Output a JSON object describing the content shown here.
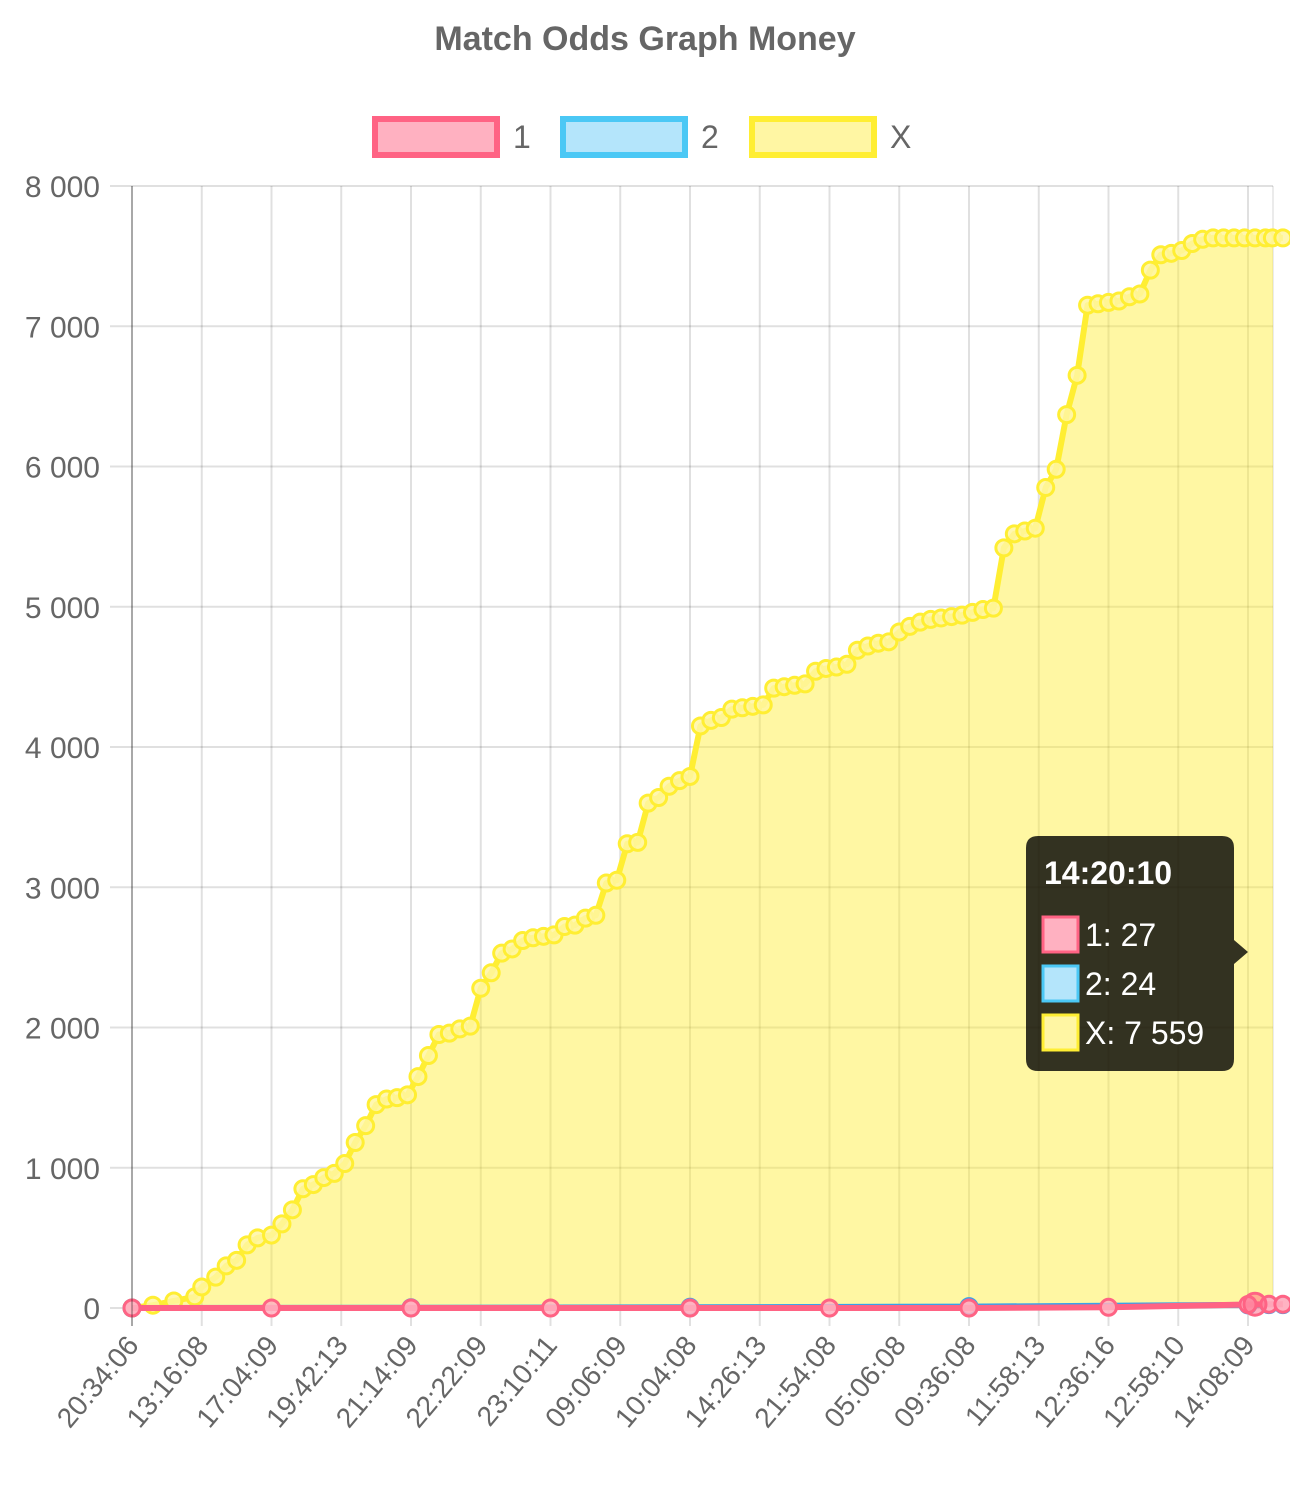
{
  "chart_data": {
    "type": "line",
    "title": "Match Odds Graph Money",
    "xlabel": "",
    "ylabel": "",
    "ylim": [
      0,
      8000
    ],
    "y_ticks": [
      "0",
      "1 000",
      "2 000",
      "3 000",
      "4 000",
      "5 000",
      "6 000",
      "7 000",
      "8 000"
    ],
    "x_tick_labels": [
      "20:34:06",
      "13:16:08",
      "17:04:09",
      "19:42:13",
      "21:14:09",
      "22:22:09",
      "23:10:11",
      "09:06:09",
      "10:04:08",
      "14:26:13",
      "21:54:08",
      "05:06:08",
      "09:36:08",
      "11:58:13",
      "12:36:16",
      "12:58:10",
      "14:08:09"
    ],
    "grid": true,
    "legend_position": "top",
    "series": [
      {
        "name": "1",
        "color": "#ff6384",
        "fill": false,
        "x": [
          0,
          2,
          4,
          6,
          8,
          10,
          12,
          14,
          16,
          16.3,
          16.5
        ],
        "values": [
          0,
          0,
          0,
          0,
          0,
          0,
          0,
          5,
          25,
          27,
          27
        ]
      },
      {
        "name": "2",
        "color": "#36a2eb",
        "fill": false,
        "x": [
          0,
          4,
          8,
          12,
          16,
          16.3,
          16.5
        ],
        "values": [
          0,
          2,
          5,
          10,
          22,
          24,
          24
        ]
      },
      {
        "name": "X",
        "color": "#ffee33",
        "fill": true,
        "x": [
          0,
          0.3,
          0.6,
          0.9,
          1.0,
          1.2,
          1.35,
          1.5,
          1.65,
          1.8,
          2.0,
          2.15,
          2.3,
          2.45,
          2.6,
          2.75,
          2.9,
          3.05,
          3.2,
          3.35,
          3.5,
          3.65,
          3.8,
          3.95,
          4.1,
          4.25,
          4.4,
          4.55,
          4.7,
          4.85,
          5.0,
          5.15,
          5.3,
          5.45,
          5.6,
          5.75,
          5.9,
          6.05,
          6.2,
          6.35,
          6.5,
          6.65,
          6.8,
          6.95,
          7.1,
          7.25,
          7.4,
          7.55,
          7.7,
          7.85,
          8.0,
          8.15,
          8.3,
          8.45,
          8.6,
          8.75,
          8.9,
          9.05,
          9.2,
          9.35,
          9.5,
          9.65,
          9.8,
          9.95,
          10.1,
          10.25,
          10.4,
          10.55,
          10.7,
          10.85,
          11.0,
          11.15,
          11.3,
          11.45,
          11.6,
          11.75,
          11.9,
          12.05,
          12.2,
          12.35,
          12.5,
          12.65,
          12.8,
          12.95,
          13.1,
          13.25,
          13.4,
          13.55,
          13.7,
          13.85,
          14.0,
          14.15,
          14.3,
          14.45,
          14.6,
          14.75,
          14.9,
          15.05,
          15.2,
          15.35,
          15.5,
          15.65,
          15.8,
          15.95,
          16.1,
          16.25,
          16.35,
          16.5
        ],
        "values": [
          0,
          20,
          50,
          80,
          150,
          220,
          300,
          340,
          450,
          500,
          520,
          600,
          700,
          850,
          880,
          930,
          960,
          1030,
          1180,
          1300,
          1450,
          1490,
          1500,
          1520,
          1650,
          1800,
          1950,
          1960,
          1990,
          2010,
          2280,
          2390,
          2530,
          2560,
          2620,
          2640,
          2650,
          2660,
          2720,
          2730,
          2780,
          2800,
          3030,
          3050,
          3310,
          3320,
          3600,
          3640,
          3720,
          3760,
          3790,
          4150,
          4190,
          4210,
          4270,
          4280,
          4290,
          4300,
          4420,
          4430,
          4440,
          4450,
          4540,
          4560,
          4570,
          4590,
          4690,
          4720,
          4740,
          4750,
          4820,
          4860,
          4890,
          4910,
          4920,
          4930,
          4940,
          4960,
          4980,
          4990,
          5420,
          5520,
          5540,
          5560,
          5850,
          5980,
          6370,
          6650,
          7150,
          7160,
          7170,
          7180,
          7210,
          7230,
          7400,
          7510,
          7520,
          7540,
          7590,
          7620,
          7630,
          7630,
          7630,
          7630,
          7630,
          7630,
          7630,
          7630
        ]
      }
    ],
    "legend": [
      {
        "label": "1",
        "color": "#ff6384",
        "fill": "#ffb1c1"
      },
      {
        "label": "2",
        "color": "#4bc8f5",
        "fill": "#b4e5fb"
      },
      {
        "label": "X",
        "color": "#ffee33",
        "fill": "#fff6a3"
      }
    ],
    "tooltip": {
      "title": "14:20:10",
      "lines": [
        {
          "text": "1: 27",
          "color": "#ff6384",
          "fill": "#ffb1c1"
        },
        {
          "text": "2: 24",
          "color": "#4bc8f5",
          "fill": "#b4e5fb"
        },
        {
          "text": "X: 7 559",
          "color": "#ffee33",
          "fill": "#fff6a3"
        }
      ]
    }
  }
}
